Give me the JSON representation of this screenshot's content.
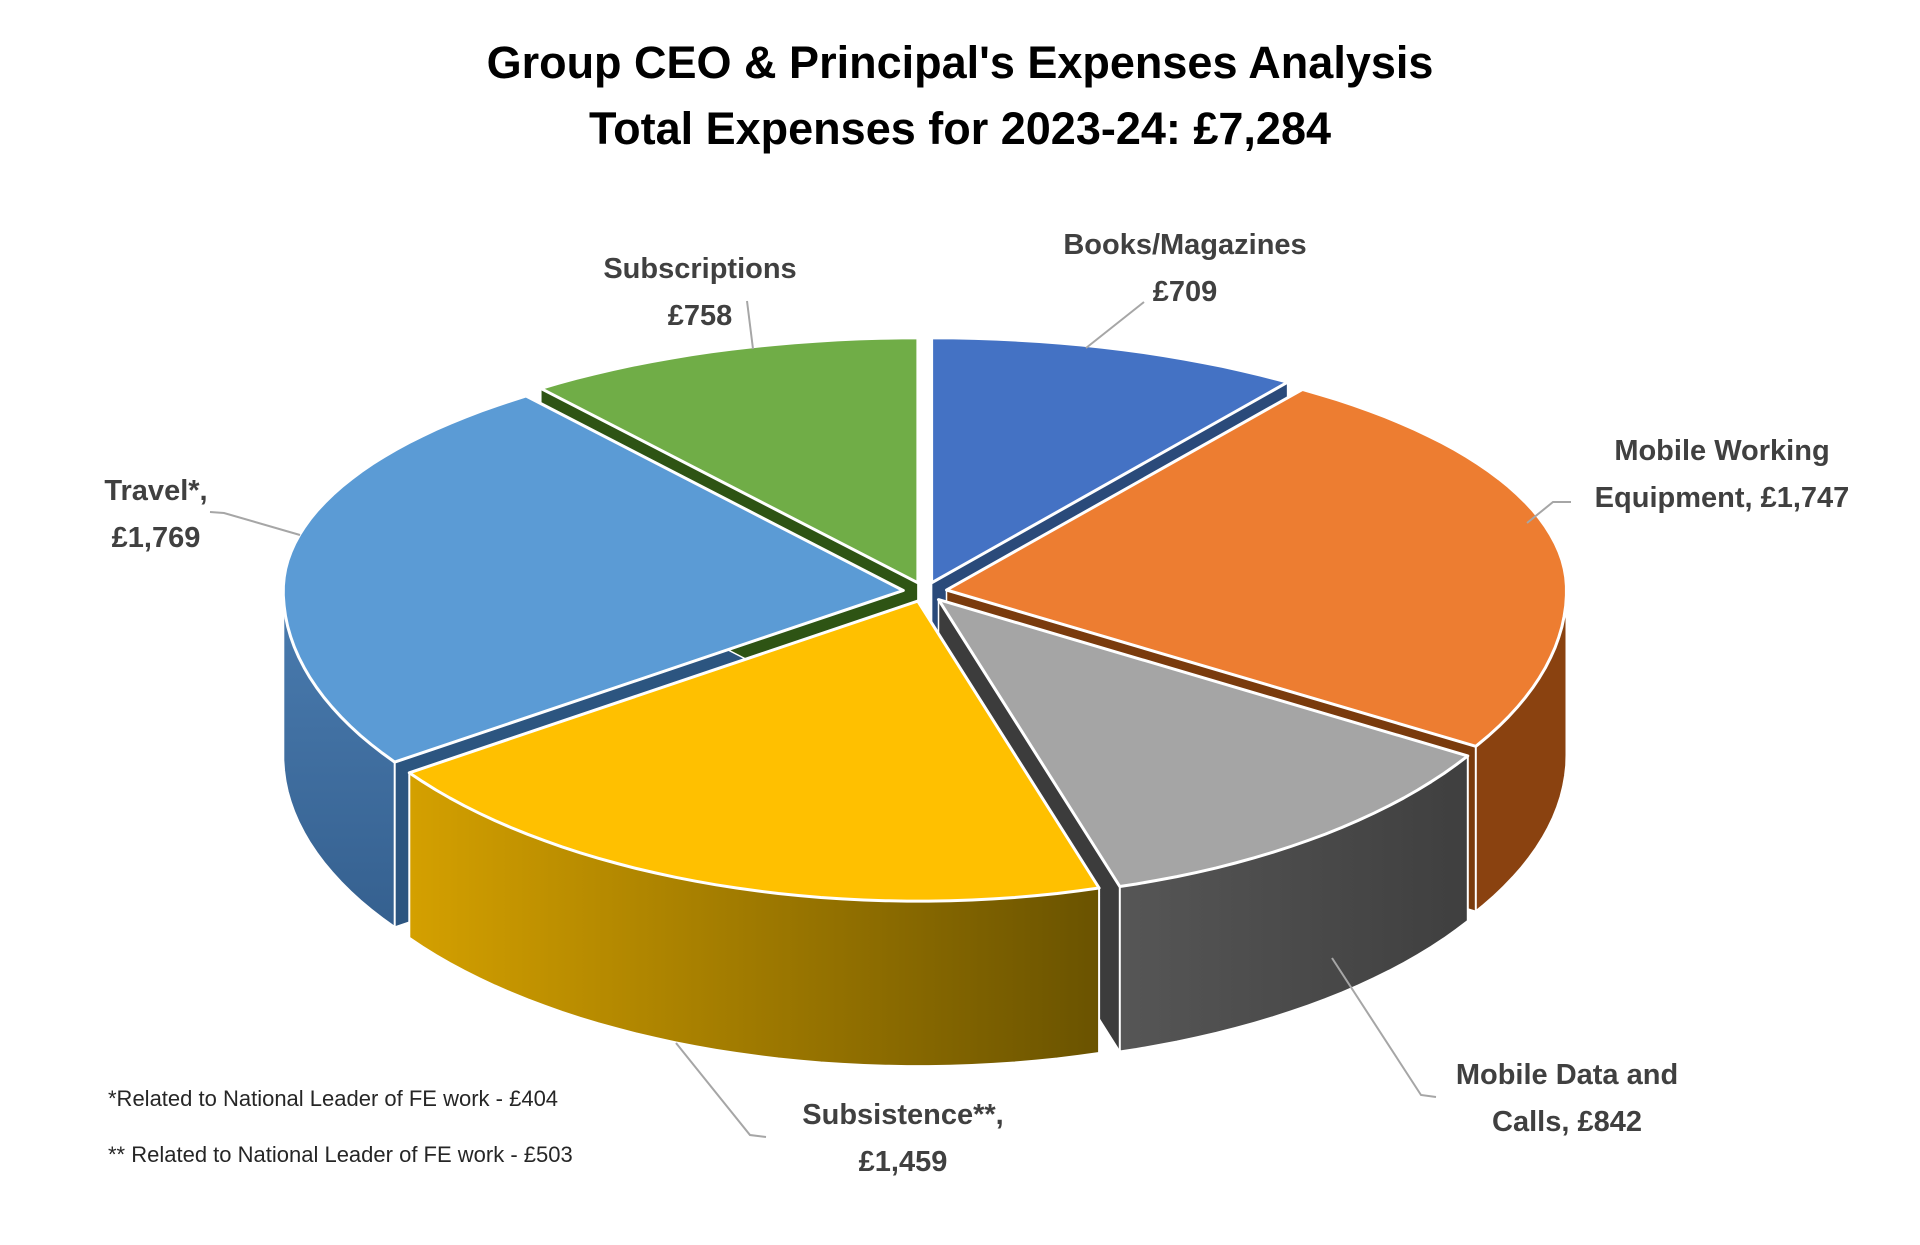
{
  "title": {
    "line1": "Group CEO & Principal's Expenses Analysis",
    "line2": "Total Expenses for 2023-24: £7,284"
  },
  "chart_data": {
    "type": "pie",
    "variant": "3d-exploded",
    "title": "Group CEO & Principal's Expenses Analysis",
    "subtitle": "Total Expenses for 2023-24: £7,284",
    "total": 7284,
    "currency": "GBP",
    "start_angle_deg": 0,
    "direction": "clockwise",
    "legend_position": "none",
    "label_color": "#404040",
    "leader_line_color": "#A6A6A6",
    "categories": [
      "Books/Magazines",
      "Mobile Working Equipment",
      "Mobile Data and Calls",
      "Subsistence",
      "Travel",
      "Subscriptions"
    ],
    "values": [
      709,
      1747,
      842,
      1459,
      1769,
      758
    ],
    "slices": [
      {
        "name": "Books/Magazines",
        "value": 709,
        "label_line1": "Books/Magazines",
        "label_line2": "£709",
        "color": "#4472C4",
        "cut_color": "#2A4A7A",
        "wall_colors": []
      },
      {
        "name": "Mobile Working Equipment",
        "value": 1747,
        "label_line1": "Mobile Working",
        "label_line2": "Equipment, £1,747",
        "color": "#ED7D31",
        "cut_color": "#7A3B0D",
        "wall_colors": [
          "#8A4210"
        ]
      },
      {
        "name": "Mobile Data and Calls",
        "value": 842,
        "label_line1": "Mobile Data and",
        "label_line2": "Calls, £842",
        "color": "#A5A5A5",
        "cut_color": "#3C3C3C",
        "wall_colors": [
          "#565656",
          "#3F3F3F"
        ]
      },
      {
        "name": "Subsistence",
        "value": 1459,
        "label_line1": "Subsistence**,",
        "label_line2": "£1,459",
        "color": "#FFC000",
        "cut_color": "#8F6F00",
        "wall_colors": [
          "#D4A000",
          "#6A5300"
        ]
      },
      {
        "name": "Travel",
        "value": 1769,
        "label_line1": "Travel*,",
        "label_line2": "£1,769",
        "color": "#5B9BD5",
        "cut_color": "#2C5580",
        "wall_colors": [
          "#4A7CB0",
          "#35608F"
        ]
      },
      {
        "name": "Subscriptions",
        "value": 758,
        "label_line1": "Subscriptions",
        "label_line2": "£758",
        "color": "#70AD47",
        "cut_color": "#2E5414",
        "wall_colors": []
      }
    ],
    "footnotes": [
      "*Related to National Leader of FE work - £404",
      "** Related to National Leader of FE work - £503"
    ]
  },
  "footnotes": {
    "line1": "*Related to National Leader of FE work - £404",
    "line2": "** Related to National Leader of FE work - £503"
  }
}
